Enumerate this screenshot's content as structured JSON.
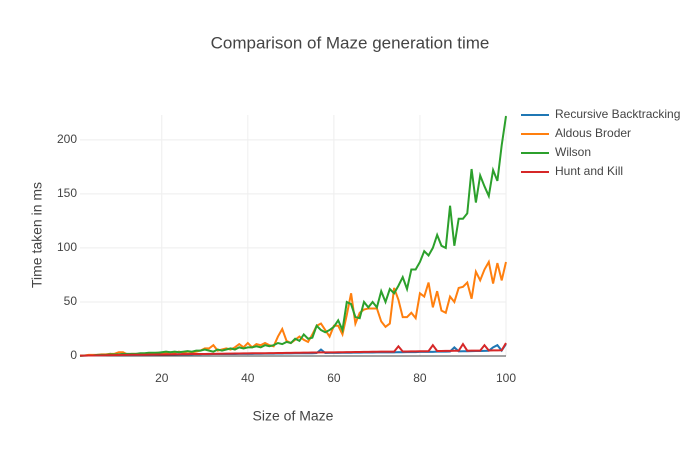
{
  "chart_data": {
    "type": "line",
    "title": "Comparison of Maze generation time",
    "x_label": "Size of Maze",
    "y_label": "Time taken in ms",
    "x": [
      1,
      2,
      3,
      4,
      5,
      6,
      7,
      8,
      9,
      10,
      11,
      12,
      13,
      14,
      15,
      16,
      17,
      18,
      19,
      20,
      21,
      22,
      23,
      24,
      25,
      26,
      27,
      28,
      29,
      30,
      31,
      32,
      33,
      34,
      35,
      36,
      37,
      38,
      39,
      40,
      41,
      42,
      43,
      44,
      45,
      46,
      47,
      48,
      49,
      50,
      51,
      52,
      53,
      54,
      55,
      56,
      57,
      58,
      59,
      60,
      61,
      62,
      63,
      64,
      65,
      66,
      67,
      68,
      69,
      70,
      71,
      72,
      73,
      74,
      75,
      76,
      77,
      78,
      79,
      80,
      81,
      82,
      83,
      84,
      85,
      86,
      87,
      88,
      89,
      90,
      91,
      92,
      93,
      94,
      95,
      96,
      97,
      98,
      99,
      100
    ],
    "series": [
      {
        "name": "Recursive Backtracking",
        "color": "#1f77b4",
        "values": [
          0.3,
          0.4,
          0.5,
          0.5,
          0.6,
          0.7,
          0.8,
          2,
          0.9,
          1,
          1,
          1,
          1,
          1.2,
          1,
          1.3,
          1.2,
          1.2,
          1.3,
          1.4,
          1.4,
          1.5,
          1.4,
          1.5,
          1.5,
          1.6,
          1.5,
          1.7,
          1.6,
          1.8,
          1.7,
          1.8,
          1.8,
          1.9,
          1.8,
          2,
          1.9,
          2,
          2,
          2.1,
          2,
          2.2,
          2.1,
          2.2,
          2.3,
          2.2,
          2.4,
          2.3,
          2.5,
          2.4,
          2.5,
          2.6,
          2.5,
          2.7,
          2.6,
          2.8,
          6,
          2.8,
          2.9,
          3,
          2.9,
          3,
          3.1,
          3,
          3.2,
          3.1,
          3.2,
          3.3,
          3.2,
          3.4,
          3.3,
          3.4,
          3.5,
          3.4,
          3.6,
          3.5,
          3.6,
          3.7,
          3.6,
          3.8,
          3.8,
          3.9,
          3.8,
          4,
          4,
          4.1,
          4.2,
          8,
          4.3,
          4.4,
          4.4,
          4.5,
          4.6,
          4.6,
          4.7,
          4.8,
          8,
          10,
          5,
          11
        ]
      },
      {
        "name": "Aldous Broder",
        "color": "#ff7f0e",
        "values": [
          0.5,
          0.5,
          1,
          1,
          1,
          1.5,
          1.5,
          2,
          2,
          3.5,
          3.5,
          1.5,
          2,
          2,
          1.5,
          2,
          2,
          2.5,
          3,
          2.5,
          3,
          3.5,
          3,
          4,
          3,
          4,
          3.5,
          4,
          5,
          7,
          7,
          10,
          5,
          6,
          7,
          6,
          8,
          11,
          8,
          12,
          8,
          11,
          10,
          12,
          10,
          9,
          18,
          25,
          14,
          12,
          15,
          18,
          15,
          13,
          20,
          28,
          30,
          24,
          18,
          28,
          28,
          20,
          38,
          58,
          30,
          40,
          43,
          44,
          44,
          44,
          32,
          27,
          30,
          63,
          52,
          36,
          36,
          40,
          35,
          58,
          55,
          68,
          45,
          60,
          42,
          40,
          55,
          50,
          63,
          64,
          68,
          53,
          78,
          70,
          80,
          87,
          67,
          86,
          70,
          87
        ]
      },
      {
        "name": "Wilson",
        "color": "#2ca02c",
        "values": [
          0,
          0.5,
          0.5,
          0.5,
          1,
          1,
          1,
          1.5,
          1.5,
          1.5,
          2,
          2,
          2,
          2,
          2.5,
          2.5,
          3,
          3,
          3,
          3.5,
          4,
          3.5,
          4,
          3.5,
          4,
          4.5,
          4,
          5,
          5,
          6,
          5,
          4,
          6,
          5,
          6,
          7,
          6,
          8,
          7,
          8,
          8,
          9,
          8,
          10,
          9,
          10,
          12,
          11,
          13,
          12,
          16,
          14,
          20,
          16,
          17,
          28,
          24,
          22,
          24,
          27,
          33,
          24,
          50,
          48,
          36,
          35,
          50,
          45,
          50,
          45,
          60,
          50,
          62,
          58,
          65,
          73,
          62,
          80,
          80,
          87,
          97,
          93,
          100,
          112,
          102,
          100,
          139,
          102,
          127,
          127,
          132,
          173,
          142,
          167,
          157,
          148,
          172,
          162,
          195,
          222
        ]
      },
      {
        "name": "Hunt and Kill",
        "color": "#d62728",
        "values": [
          0.3,
          0.4,
          0.5,
          0.5,
          0.6,
          0.6,
          0.7,
          0.8,
          0.8,
          0.9,
          1,
          1,
          1.1,
          1.1,
          1.2,
          1.2,
          1.3,
          1.3,
          1.4,
          1.4,
          1.5,
          1.5,
          1.6,
          1.6,
          1.7,
          1.7,
          1.8,
          1.8,
          1.9,
          1.9,
          2,
          2,
          2.1,
          2.1,
          2.2,
          2.2,
          2.3,
          2.3,
          2.4,
          2.4,
          2.5,
          2.5,
          2.6,
          2.6,
          2.7,
          2.7,
          2.8,
          2.8,
          2.9,
          2.9,
          3,
          3,
          3.1,
          3.1,
          3.2,
          3.2,
          3.3,
          3.3,
          3.4,
          3.4,
          3.5,
          3.5,
          3.6,
          3.6,
          3.7,
          3.7,
          3.8,
          3.8,
          3.9,
          3.9,
          4,
          4,
          4.1,
          4.1,
          9,
          4.2,
          4.2,
          4.3,
          4.3,
          4.4,
          4.4,
          4.5,
          10,
          4.6,
          4.6,
          4.7,
          4.7,
          4.8,
          4.8,
          11,
          4.9,
          5,
          5,
          5,
          10,
          5.1,
          5.2,
          5.2,
          5.3,
          12
        ]
      }
    ],
    "xlim": [
      1,
      100
    ],
    "ylim": [
      0,
      223
    ],
    "xticks": [
      20,
      40,
      60,
      80,
      100
    ],
    "yticks": [
      0,
      50,
      100,
      150,
      200
    ],
    "grid": true,
    "legend": "right"
  }
}
